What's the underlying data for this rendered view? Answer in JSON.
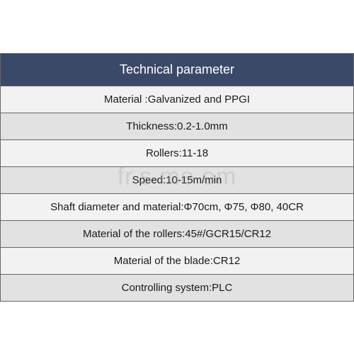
{
  "table": {
    "title": "Technical parameter",
    "header_bg": "#3b4968",
    "header_color": "#ffffff",
    "odd_row_bg": "#f2f2f2",
    "even_row_bg": "#e2e2e2",
    "border_color": "#666666",
    "text_color": "#1a1a1a",
    "title_fontsize": 18,
    "row_fontsize": 15,
    "rows": [
      "Material :Galvanized and PPGI",
      "Thickness:0.2-1.0mm",
      "Rollers:11-18",
      "Speed:10-15m/min",
      "Shaft diameter and material:Φ70cm, Φ75, Φ80, 40CR",
      "Material of the rollers:45#/GCR15/CR12",
      "Material of the blade:CR12",
      "Controlling system:PLC"
    ]
  },
  "watermark": {
    "text": "fr.s   me   om",
    "color": "rgba(160,160,160,0.30)",
    "fontsize": 34
  }
}
